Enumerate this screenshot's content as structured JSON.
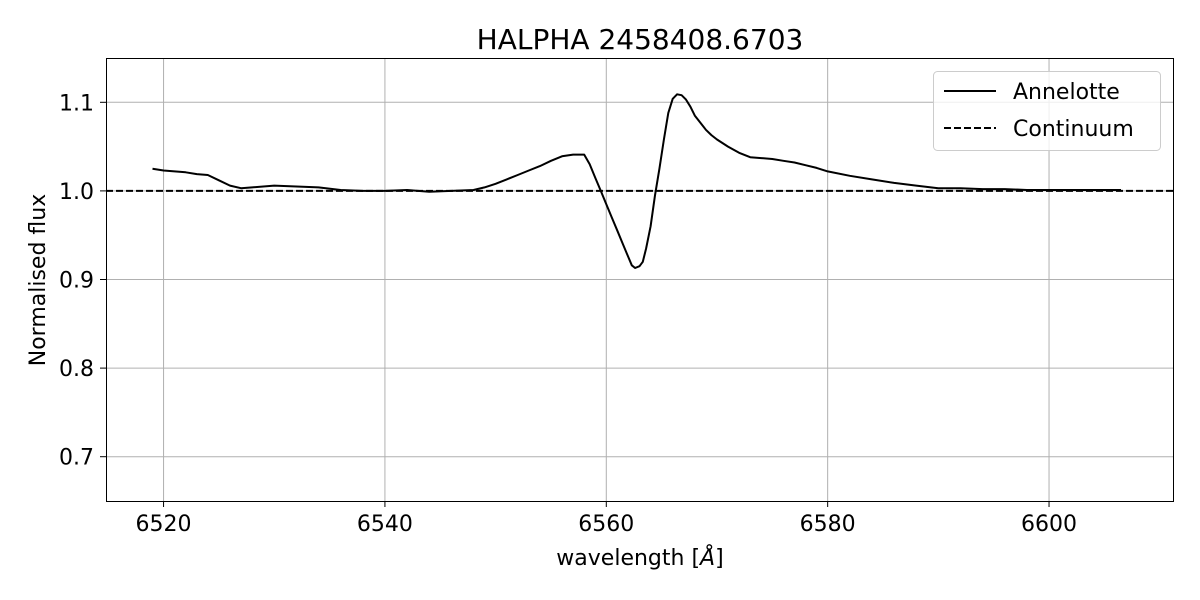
{
  "chart_data": {
    "type": "line",
    "title": "HALPHA 2458408.6703",
    "xlabel": "wavelength [",
    "xlabel_unit": "Å",
    "xlabel_close": "]",
    "ylabel": "Normalised flux",
    "xlim": [
      6514.8,
      6611.2
    ],
    "ylim": [
      0.65,
      1.15
    ],
    "xticks": [
      6520,
      6540,
      6560,
      6580,
      6600
    ],
    "yticks": [
      0.7,
      0.8,
      0.9,
      1.0,
      1.1
    ],
    "xtick_labels": [
      "6520",
      "6540",
      "6560",
      "6580",
      "6600"
    ],
    "ytick_labels": [
      "0.7",
      "0.8",
      "0.9",
      "1.0",
      "1.1"
    ],
    "grid": true,
    "legend_position": "top-right",
    "series": [
      {
        "name": "Annelotte",
        "style": "solid",
        "color": "#000000",
        "x": [
          6519.0,
          6520.0,
          6521.0,
          6522.0,
          6523.0,
          6524.0,
          6525.0,
          6526.0,
          6527.0,
          6528.0,
          6530.0,
          6532.0,
          6534.0,
          6536.0,
          6538.0,
          6540.0,
          6542.0,
          6544.0,
          6546.0,
          6548.0,
          6549.0,
          6550.0,
          6551.0,
          6552.0,
          6553.0,
          6554.0,
          6555.0,
          6556.0,
          6557.0,
          6558.0,
          6558.5,
          6559.0,
          6559.5,
          6560.0,
          6560.5,
          6561.0,
          6561.5,
          6562.0,
          6562.3,
          6562.6,
          6563.0,
          6563.3,
          6563.6,
          6564.0,
          6564.4,
          6564.8,
          6565.2,
          6565.6,
          6566.0,
          6566.4,
          6566.8,
          6567.2,
          6567.6,
          6568.0,
          6568.5,
          6569.0,
          6569.5,
          6570.0,
          6571.0,
          6572.0,
          6573.0,
          6574.0,
          6575.0,
          6576.0,
          6577.0,
          6578.0,
          6579.0,
          6580.0,
          6582.0,
          6584.0,
          6586.0,
          6588.0,
          6590.0,
          6592.0,
          6594.0,
          6596.0,
          6598.0,
          6600.0,
          6602.0,
          6604.0,
          6606.5
        ],
        "y": [
          1.025,
          1.023,
          1.022,
          1.021,
          1.019,
          1.018,
          1.012,
          1.006,
          1.003,
          1.004,
          1.006,
          1.005,
          1.004,
          1.001,
          1.0,
          1.0,
          1.001,
          0.999,
          1.0,
          1.001,
          1.004,
          1.008,
          1.013,
          1.018,
          1.023,
          1.028,
          1.034,
          1.039,
          1.041,
          1.041,
          1.03,
          1.015,
          1.0,
          0.985,
          0.97,
          0.955,
          0.94,
          0.925,
          0.916,
          0.913,
          0.915,
          0.92,
          0.935,
          0.96,
          0.995,
          1.025,
          1.058,
          1.088,
          1.104,
          1.109,
          1.108,
          1.103,
          1.095,
          1.085,
          1.077,
          1.069,
          1.063,
          1.058,
          1.05,
          1.043,
          1.038,
          1.037,
          1.036,
          1.034,
          1.032,
          1.029,
          1.026,
          1.022,
          1.017,
          1.013,
          1.009,
          1.006,
          1.003,
          1.003,
          1.002,
          1.002,
          1.001,
          1.001,
          1.001,
          1.001,
          1.001
        ]
      },
      {
        "name": "Continuum",
        "style": "dashed",
        "color": "#000000",
        "x": [
          6514.8,
          6611.2
        ],
        "y": [
          1.0,
          1.0
        ]
      }
    ]
  }
}
